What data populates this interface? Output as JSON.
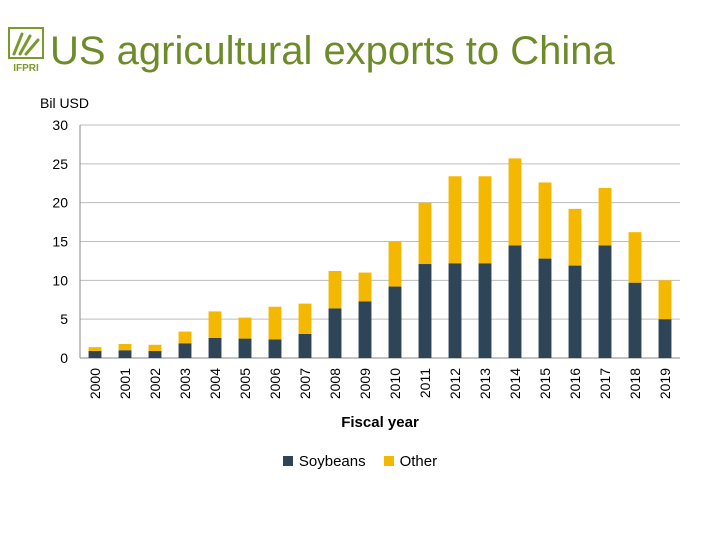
{
  "header": {
    "title": "US agricultural exports to China",
    "title_color": "#6e8b2a",
    "logo": {
      "icon": "ifpri-wheat-logo-icon",
      "text": "IFPRI",
      "color": "#7a9a2e"
    }
  },
  "chart_data": {
    "type": "bar",
    "stacked": true,
    "categories": [
      "2000",
      "2001",
      "2002",
      "2003",
      "2004",
      "2005",
      "2006",
      "2007",
      "2008",
      "2009",
      "2010",
      "2011",
      "2012",
      "2013",
      "2014",
      "2015",
      "2016",
      "2017",
      "2018",
      "2019"
    ],
    "series": [
      {
        "name": "Soybeans",
        "color": "#2e4558",
        "values": [
          0.9,
          1.0,
          0.9,
          1.9,
          2.6,
          2.5,
          2.4,
          3.1,
          6.4,
          7.3,
          9.2,
          12.1,
          12.2,
          12.2,
          14.5,
          12.8,
          11.9,
          14.5,
          9.7,
          5.0
        ]
      },
      {
        "name": "Other",
        "color": "#f5b800",
        "values": [
          0.5,
          0.8,
          0.8,
          1.5,
          3.4,
          2.7,
          4.2,
          3.9,
          4.8,
          3.7,
          5.8,
          7.9,
          11.2,
          11.2,
          11.2,
          9.8,
          7.3,
          7.4,
          6.5,
          5.0
        ]
      }
    ],
    "title": "US agricultural exports to China",
    "xlabel": "Fiscal year",
    "ylabel": "Bil USD",
    "ylim": [
      0,
      30
    ],
    "yticks": [
      0,
      5,
      10,
      15,
      20,
      25,
      30
    ],
    "grid": true,
    "legend_position": "bottom"
  }
}
